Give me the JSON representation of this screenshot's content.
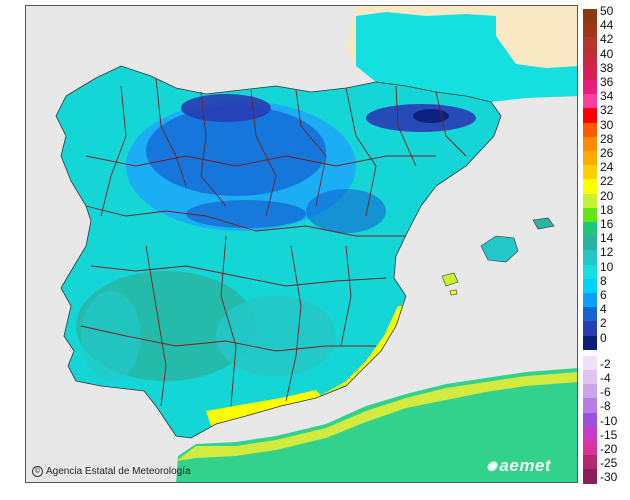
{
  "map": {
    "credit_icon": "©",
    "credit_text": "Agencia Estatal de Meteorología",
    "logo_text": "aemet",
    "logo_icon": "aemet-swirl-icon"
  },
  "legend": {
    "positive_labels": [
      "50",
      "44",
      "42",
      "40",
      "38",
      "36",
      "34",
      "32",
      "30",
      "28",
      "26",
      "24",
      "22",
      "20",
      "18",
      "16",
      "14",
      "12",
      "10",
      "8",
      "6",
      "4",
      "2",
      "0"
    ],
    "negative_labels": [
      "-2",
      "-4",
      "-6",
      "-8",
      "-10",
      "-15",
      "-20",
      "-25",
      "-30"
    ],
    "positive_colors": [
      "#8b3a10",
      "#a0351e",
      "#b6332e",
      "#c62a3c",
      "#d81f56",
      "#e81d7a",
      "#ff3e9c",
      "#ff0000",
      "#ff5a00",
      "#ff8c00",
      "#ffaa00",
      "#ffd000",
      "#ffff00",
      "#c8f032",
      "#64e614",
      "#1ec878",
      "#28b4a0",
      "#22c8c8",
      "#14e0e0",
      "#00d2ff",
      "#0aa0ff",
      "#1464d2",
      "#283cb4",
      "#0a1e78"
    ],
    "negative_colors": [
      "#f0e0f8",
      "#e0c4f0",
      "#cca6ea",
      "#b47ee6",
      "#9c50e0",
      "#c83cc8",
      "#d8349c",
      "#b4286e",
      "#8c1e5a"
    ]
  },
  "colors": {
    "sea": "#e8e8e8",
    "africa_land": "#32d28c",
    "france_land": "#f8e8c4",
    "coast_yellow": "#f0f030",
    "border": "#7a1e1e"
  }
}
